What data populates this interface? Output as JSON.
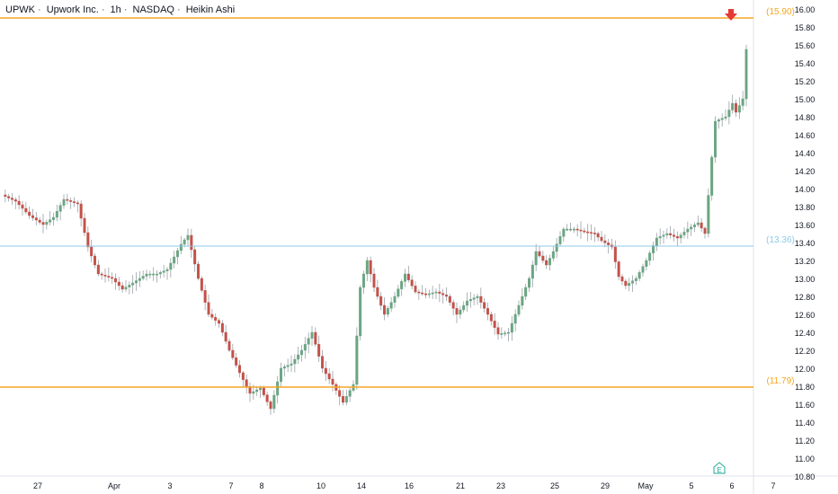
{
  "header": {
    "symbol": "UPWK",
    "name": "Upwork Inc.",
    "interval": "1h",
    "exchange": "NASDAQ",
    "chart_style": "Heikin Ashi",
    "separator": "·"
  },
  "colors": {
    "up": "#6ba583",
    "down": "#c2524a",
    "orange_level": "#f5a623",
    "blue_level": "#8ecae6",
    "grid": "#f0f3fa",
    "axis_text": "#131722",
    "arrow": "#e53935",
    "earnings": "#22ab94"
  },
  "chart_data": {
    "type": "candlestick",
    "style": "heikin-ashi",
    "ylim": [
      10.8,
      16.1
    ],
    "y_ticks": [
      "16.00",
      "15.80",
      "15.60",
      "15.40",
      "15.20",
      "15.00",
      "14.80",
      "14.60",
      "14.40",
      "14.20",
      "14.00",
      "13.80",
      "13.60",
      "13.40",
      "13.20",
      "13.00",
      "12.80",
      "12.60",
      "12.40",
      "12.20",
      "12.00",
      "11.80",
      "11.60",
      "11.40",
      "11.20",
      "11.00",
      "10.80"
    ],
    "x_ticks": [
      "27",
      "Apr",
      "3",
      "7",
      "8",
      "10",
      "14",
      "16",
      "21",
      "23",
      "25",
      "29",
      "May",
      "5",
      "6",
      "7"
    ],
    "levels": [
      {
        "value": 15.9,
        "label": "(15.90)",
        "style": "orange"
      },
      {
        "value": 13.36,
        "label": "(13.36)",
        "style": "blue"
      },
      {
        "value": 11.79,
        "label": "(11.79)",
        "style": "orange"
      }
    ],
    "earnings_marker": "E",
    "anchors": [
      [
        0,
        13.93
      ],
      [
        4,
        13.86
      ],
      [
        8,
        13.7
      ],
      [
        12,
        13.6
      ],
      [
        15,
        13.68
      ],
      [
        18,
        13.88
      ],
      [
        22,
        13.83
      ],
      [
        25,
        13.35
      ],
      [
        28,
        13.05
      ],
      [
        32,
        13.0
      ],
      [
        35,
        12.88
      ],
      [
        38,
        12.95
      ],
      [
        42,
        13.05
      ],
      [
        45,
        13.05
      ],
      [
        48,
        13.1
      ],
      [
        52,
        13.38
      ],
      [
        54,
        13.48
      ],
      [
        57,
        13.0
      ],
      [
        60,
        12.6
      ],
      [
        63,
        12.5
      ],
      [
        66,
        12.2
      ],
      [
        69,
        11.95
      ],
      [
        72,
        11.72
      ],
      [
        75,
        11.78
      ],
      [
        78,
        11.55
      ],
      [
        81,
        12.0
      ],
      [
        84,
        12.05
      ],
      [
        87,
        12.2
      ],
      [
        90,
        12.4
      ],
      [
        93,
        12.0
      ],
      [
        96,
        11.82
      ],
      [
        99,
        11.62
      ],
      [
        102,
        11.82
      ],
      [
        104,
        12.9
      ],
      [
        106,
        13.2
      ],
      [
        108,
        12.9
      ],
      [
        111,
        12.6
      ],
      [
        114,
        12.8
      ],
      [
        117,
        13.05
      ],
      [
        120,
        12.85
      ],
      [
        123,
        12.82
      ],
      [
        126,
        12.85
      ],
      [
        129,
        12.8
      ],
      [
        132,
        12.6
      ],
      [
        135,
        12.75
      ],
      [
        138,
        12.8
      ],
      [
        141,
        12.6
      ],
      [
        144,
        12.38
      ],
      [
        147,
        12.4
      ],
      [
        150,
        12.7
      ],
      [
        153,
        13.0
      ],
      [
        155,
        13.3
      ],
      [
        158,
        13.15
      ],
      [
        160,
        13.3
      ],
      [
        163,
        13.55
      ],
      [
        166,
        13.55
      ],
      [
        169,
        13.52
      ],
      [
        172,
        13.5
      ],
      [
        174,
        13.42
      ],
      [
        177,
        13.35
      ],
      [
        179,
        13.02
      ],
      [
        181,
        12.92
      ],
      [
        184,
        13.0
      ],
      [
        187,
        13.2
      ],
      [
        190,
        13.45
      ],
      [
        193,
        13.5
      ],
      [
        196,
        13.45
      ],
      [
        199,
        13.55
      ],
      [
        202,
        13.62
      ],
      [
        204,
        13.5
      ],
      [
        206,
        14.35
      ],
      [
        207,
        14.75
      ],
      [
        210,
        14.8
      ],
      [
        212,
        14.95
      ],
      [
        213,
        14.85
      ],
      [
        215,
        15.0
      ],
      [
        216,
        15.55
      ]
    ]
  }
}
